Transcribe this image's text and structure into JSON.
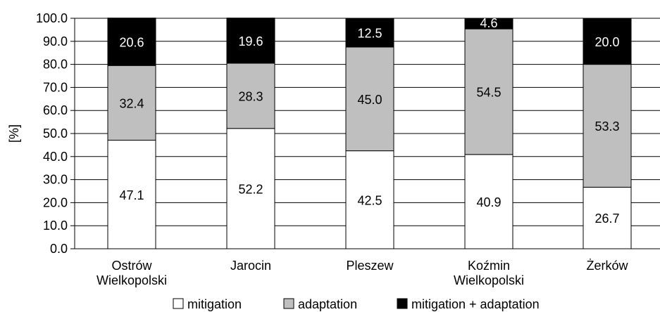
{
  "chart_data": {
    "type": "bar",
    "stacked": true,
    "categories": [
      [
        "Ostrów",
        "Wielkopolski"
      ],
      [
        "Jarocin"
      ],
      [
        "Pleszew"
      ],
      [
        "Koźmin",
        "Wielkopolski"
      ],
      [
        "Żerków"
      ]
    ],
    "series": [
      {
        "name": "mitigation",
        "color": "#ffffff",
        "label_color": "#000000",
        "values": [
          47.1,
          52.2,
          42.5,
          40.9,
          26.7
        ]
      },
      {
        "name": "adaptation",
        "color": "#bfbfbf",
        "label_color": "#000000",
        "values": [
          32.4,
          28.3,
          45.0,
          54.5,
          53.3
        ]
      },
      {
        "name": "mitigation + adaptation",
        "color": "#000000",
        "label_color": "#ffffff",
        "values": [
          20.6,
          19.6,
          12.5,
          4.6,
          20.0
        ]
      }
    ],
    "value_labels": [
      [
        "47.1",
        "52.2",
        "42.5",
        "40.9",
        "26.7"
      ],
      [
        "32.4",
        "28.3",
        "45.0",
        "54.5",
        "53.3"
      ],
      [
        "20.6",
        "19.6",
        "12.5",
        "4.6",
        "20.0"
      ]
    ],
    "ylabel": "[%]",
    "ylim": [
      0,
      100
    ],
    "yticks": [
      "0.0",
      "10.0",
      "20.0",
      "30.0",
      "40.0",
      "50.0",
      "60.0",
      "70.0",
      "80.0",
      "90.0",
      "100.0"
    ],
    "grid": true,
    "legend_position": "bottom"
  }
}
